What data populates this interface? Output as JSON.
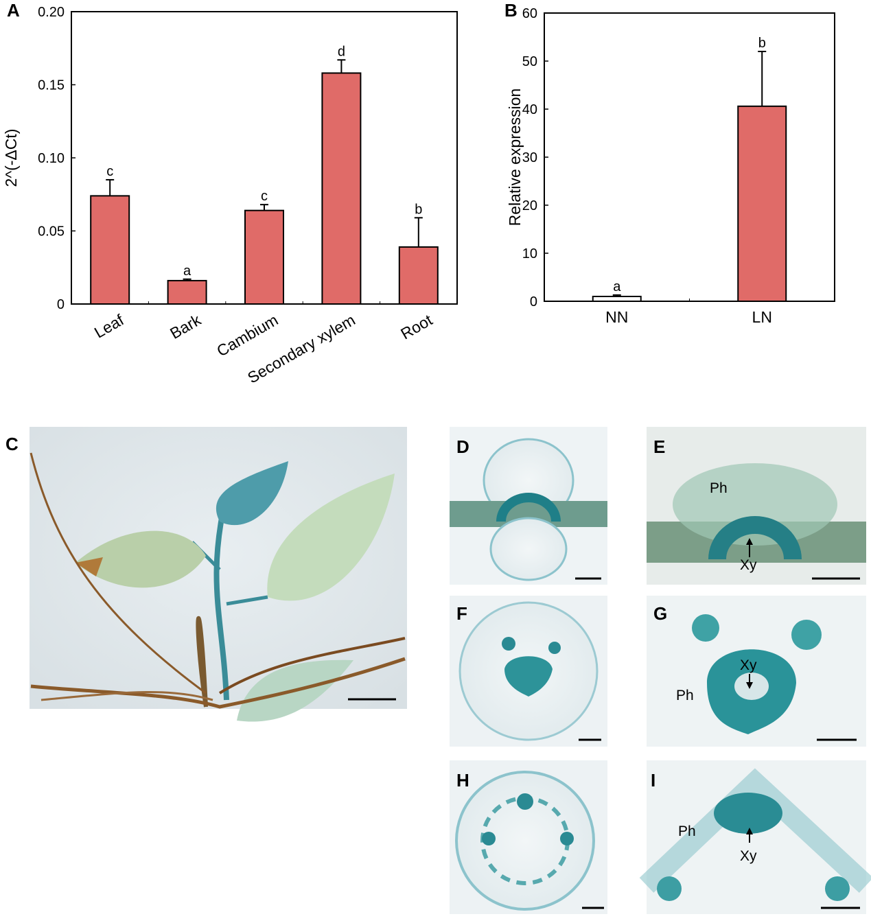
{
  "chart_data": [
    {
      "type": "bar",
      "panel": "A",
      "y_label": "2^(-ΔCt)",
      "categories": [
        "Leaf",
        "Bark",
        "Cambium",
        "Secondary xylem",
        "Root"
      ],
      "values": [
        0.074,
        0.016,
        0.064,
        0.158,
        0.039
      ],
      "errors": [
        0.011,
        0.001,
        0.004,
        0.009,
        0.02
      ],
      "annotations": [
        "c",
        "a",
        "c",
        "d",
        "b"
      ],
      "colors": [
        "#e06b68",
        "#e06b68",
        "#e06b68",
        "#e06b68",
        "#e06b68"
      ],
      "ylim": [
        0,
        0.2
      ],
      "yticks": [
        0,
        0.05,
        {
          "value": 0.1,
          "label": "0.10"
        },
        0.15,
        {
          "value": 0.2,
          "label": "0.20"
        }
      ]
    },
    {
      "type": "bar",
      "panel": "B",
      "y_label": "Relative expression",
      "categories": [
        "NN",
        "LN"
      ],
      "values": [
        1,
        40.6
      ],
      "errors": [
        0.3,
        11.4
      ],
      "annotations": [
        "a",
        "b"
      ],
      "colors": [
        "#ffffff",
        "#e06b68"
      ],
      "ylim": [
        0,
        60
      ],
      "yticks": [
        0,
        10,
        20,
        30,
        40,
        50,
        60
      ]
    }
  ],
  "images": [
    {
      "label": "C"
    },
    {
      "label": "D"
    },
    {
      "label": "E",
      "annotations": [
        "Ph",
        "Xy"
      ]
    },
    {
      "label": "F"
    },
    {
      "label": "G",
      "annotations": [
        "Xy",
        "Ph"
      ]
    },
    {
      "label": "H"
    },
    {
      "label": "I",
      "annotations": [
        "Ph",
        "Xy"
      ]
    }
  ]
}
